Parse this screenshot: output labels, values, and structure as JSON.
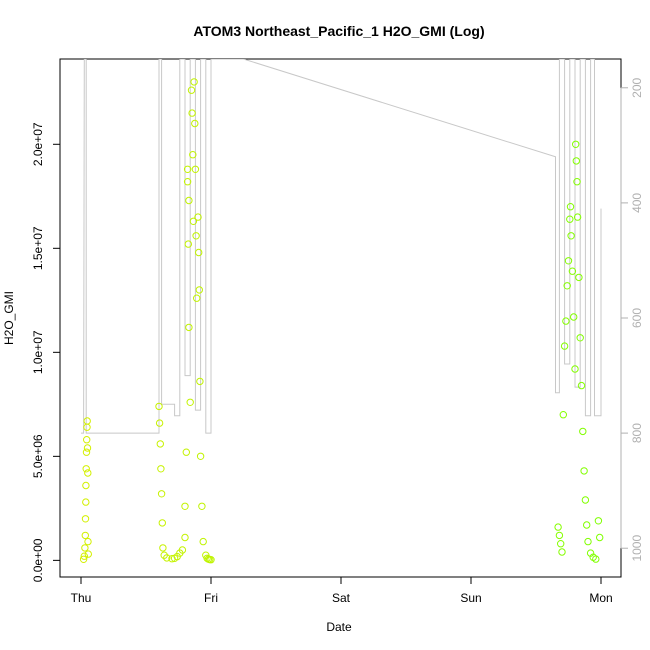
{
  "chart_data": {
    "type": "scatter",
    "title": "ATOM3 Northeast_Pacific_1 H2O_GMI (Log)",
    "xlabel": "Date",
    "ylabel": "H2O_GMI",
    "x_ticks": [
      "Thu",
      "Fri",
      "Sat",
      "Sun",
      "Mon"
    ],
    "xlim": [
      "Thu",
      "Mon"
    ],
    "y_ticks": [
      "0.0e+00",
      "5.0e+06",
      "1.0e+07",
      "1.5e+07",
      "2.0e+07"
    ],
    "ylim": [
      -800000,
      24100000
    ],
    "y2_ticks": [
      "200",
      "400",
      "600",
      "800",
      "1000"
    ],
    "y2lim_reversed": [
      1050,
      150
    ],
    "y2_label_color": "#b0b0b0",
    "marker": "open-circle",
    "color_start": "#d4f000",
    "color_end": "#7fff00",
    "altitude_trace_color": "#c8c8c8",
    "series": [
      {
        "name": "",
        "points": [
          [
            0.02,
            50000
          ],
          [
            0.025,
            200000
          ],
          [
            0.03,
            600000
          ],
          [
            0.033,
            1200000
          ],
          [
            0.035,
            2000000
          ],
          [
            0.037,
            2800000
          ],
          [
            0.038,
            3600000
          ],
          [
            0.04,
            4400000
          ],
          [
            0.042,
            5200000
          ],
          [
            0.044,
            5800000
          ],
          [
            0.046,
            6400000
          ],
          [
            0.048,
            6700000
          ],
          [
            0.05,
            5400000
          ],
          [
            0.052,
            4200000
          ],
          [
            0.054,
            900000
          ],
          [
            0.056,
            300000
          ],
          [
            0.6,
            7400000
          ],
          [
            0.605,
            6600000
          ],
          [
            0.61,
            5600000
          ],
          [
            0.615,
            4400000
          ],
          [
            0.62,
            3200000
          ],
          [
            0.625,
            1800000
          ],
          [
            0.63,
            600000
          ],
          [
            0.64,
            250000
          ],
          [
            0.66,
            120000
          ],
          [
            0.7,
            80000
          ],
          [
            0.72,
            100000
          ],
          [
            0.74,
            180000
          ],
          [
            0.76,
            350000
          ],
          [
            0.78,
            500000
          ],
          [
            0.8,
            1100000
          ],
          [
            0.8,
            2600000
          ],
          [
            0.81,
            5200000
          ],
          [
            0.82,
            18800000
          ],
          [
            0.82,
            18200000
          ],
          [
            0.83,
            17300000
          ],
          [
            0.825,
            15200000
          ],
          [
            0.83,
            11200000
          ],
          [
            0.84,
            7600000
          ],
          [
            0.85,
            22600000
          ],
          [
            0.855,
            21500000
          ],
          [
            0.86,
            19500000
          ],
          [
            0.865,
            16300000
          ],
          [
            0.87,
            23000000
          ],
          [
            0.875,
            21000000
          ],
          [
            0.88,
            18800000
          ],
          [
            0.885,
            15600000
          ],
          [
            0.89,
            12600000
          ],
          [
            0.9,
            16500000
          ],
          [
            0.905,
            14800000
          ],
          [
            0.91,
            13000000
          ],
          [
            0.915,
            8600000
          ],
          [
            0.92,
            5000000
          ],
          [
            0.93,
            2600000
          ],
          [
            0.94,
            900000
          ],
          [
            0.96,
            250000
          ],
          [
            0.97,
            100000
          ],
          [
            0.98,
            60000
          ],
          [
            0.99,
            40000
          ],
          [
            1.0,
            30000
          ],
          [
            3.67,
            1600000
          ],
          [
            3.68,
            1200000
          ],
          [
            3.69,
            800000
          ],
          [
            3.7,
            400000
          ],
          [
            3.71,
            7000000
          ],
          [
            3.72,
            10300000
          ],
          [
            3.73,
            11500000
          ],
          [
            3.74,
            13200000
          ],
          [
            3.75,
            14400000
          ],
          [
            3.76,
            16400000
          ],
          [
            3.765,
            17000000
          ],
          [
            3.77,
            15600000
          ],
          [
            3.78,
            13900000
          ],
          [
            3.79,
            11700000
          ],
          [
            3.8,
            9200000
          ],
          [
            3.805,
            20000000
          ],
          [
            3.81,
            19200000
          ],
          [
            3.815,
            18200000
          ],
          [
            3.82,
            16500000
          ],
          [
            3.83,
            13600000
          ],
          [
            3.84,
            10700000
          ],
          [
            3.85,
            8400000
          ],
          [
            3.86,
            6200000
          ],
          [
            3.87,
            4300000
          ],
          [
            3.88,
            2900000
          ],
          [
            3.89,
            1700000
          ],
          [
            3.9,
            900000
          ],
          [
            3.92,
            350000
          ],
          [
            3.94,
            150000
          ],
          [
            3.96,
            60000
          ],
          [
            3.98,
            1900000
          ],
          [
            3.99,
            1100000
          ]
        ]
      }
    ],
    "altitude_trace": [
      [
        0.0,
        800
      ],
      [
        0.02,
        800
      ],
      [
        0.025,
        150
      ],
      [
        0.04,
        150
      ],
      [
        0.04,
        800
      ],
      [
        0.6,
        800
      ],
      [
        0.6,
        150
      ],
      [
        0.62,
        150
      ],
      [
        0.62,
        750
      ],
      [
        0.72,
        750
      ],
      [
        0.72,
        770
      ],
      [
        0.76,
        770
      ],
      [
        0.76,
        150
      ],
      [
        0.8,
        150
      ],
      [
        0.8,
        700
      ],
      [
        0.84,
        700
      ],
      [
        0.84,
        150
      ],
      [
        0.88,
        150
      ],
      [
        0.88,
        760
      ],
      [
        0.92,
        760
      ],
      [
        0.92,
        150
      ],
      [
        0.96,
        150
      ],
      [
        0.96,
        800
      ],
      [
        1.0,
        800
      ],
      [
        1.0,
        150
      ],
      [
        1.25,
        150
      ],
      [
        3.65,
        320
      ],
      [
        3.65,
        730
      ],
      [
        3.68,
        730
      ],
      [
        3.68,
        150
      ],
      [
        3.72,
        150
      ],
      [
        3.72,
        680
      ],
      [
        3.76,
        680
      ],
      [
        3.76,
        150
      ],
      [
        3.8,
        150
      ],
      [
        3.8,
        720
      ],
      [
        3.84,
        720
      ],
      [
        3.84,
        150
      ],
      [
        3.88,
        150
      ],
      [
        3.88,
        770
      ],
      [
        3.92,
        770
      ],
      [
        3.92,
        150
      ],
      [
        3.95,
        150
      ],
      [
        3.95,
        770
      ],
      [
        4.0,
        770
      ],
      [
        4.0,
        410
      ]
    ]
  }
}
